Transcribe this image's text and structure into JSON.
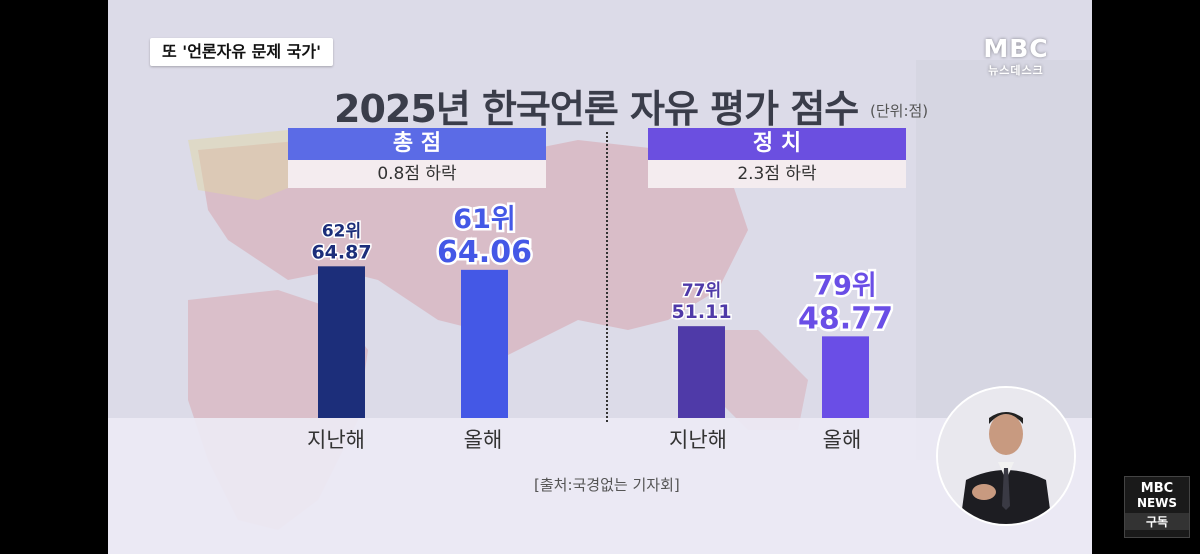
{
  "caption_tag": "또 '언론자유 문제 국가'",
  "broadcaster_logo": {
    "main": "MBC",
    "sub": "뉴스데스크"
  },
  "news_logo": {
    "line1": "MBC",
    "line2": "NEWS",
    "line3": "구독"
  },
  "chart_data": {
    "type": "bar",
    "title": "2025년 한국언론 자유 평가 점수",
    "unit_label": "(단위:점)",
    "source": "[출처:국경없는 기자회]",
    "groups": [
      {
        "name": "총 점",
        "change_label": "0.8점 하락",
        "header_color": "#5b6be6",
        "bars": [
          {
            "category": "지난해",
            "rank": 62,
            "rank_label": "62위",
            "value": 64.87,
            "value_label": "64.87",
            "color": "#1c2e7a"
          },
          {
            "category": "올해",
            "rank": 61,
            "rank_label": "61위",
            "value": 64.06,
            "value_label": "64.06",
            "color": "#4458e6"
          }
        ]
      },
      {
        "name": "정 치",
        "change_label": "2.3점 하락",
        "header_color": "#6b4fe0",
        "bars": [
          {
            "category": "지난해",
            "rank": 77,
            "rank_label": "77위",
            "value": 51.11,
            "value_label": "51.11",
            "color": "#4f3aa8"
          },
          {
            "category": "올해",
            "rank": 79,
            "rank_label": "79위",
            "value": 48.77,
            "value_label": "48.77",
            "color": "#6a4ee6"
          }
        ]
      }
    ]
  }
}
